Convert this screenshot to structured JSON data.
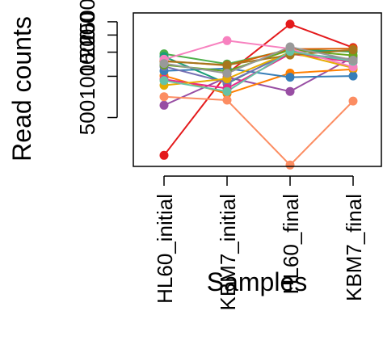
{
  "chart_data": {
    "type": "line",
    "title": "",
    "xlabel": "Samples",
    "ylabel": "Read counts",
    "yscale": "log",
    "ylim": [
      220,
      2900
    ],
    "categories": [
      "HL60_initial",
      "KBM7_initial",
      "HL60_final",
      "KBM7_final"
    ],
    "yticks": [
      500,
      1000,
      1500,
      2000,
      2500
    ],
    "ytick_labels": [
      "500",
      "1000",
      "1500",
      "2000",
      "2500"
    ],
    "grid": false,
    "legend": "none",
    "series": [
      {
        "color": "#e41a1c",
        "values": [
          265,
          1045,
          2400,
          1620
        ]
      },
      {
        "color": "#4daf4a",
        "values": [
          1460,
          1230,
          1570,
          1510
        ]
      },
      {
        "color": "#984ea3",
        "values": [
          615,
          985,
          775,
          1380
        ]
      },
      {
        "color": "#ff7f00",
        "values": [
          1010,
          745,
          1055,
          1125
        ]
      },
      {
        "color": "#377eb8",
        "values": [
          1095,
          1140,
          985,
          1005
        ]
      },
      {
        "color": "#1b9e77",
        "values": [
          1395,
          885,
          1510,
          1540
        ]
      },
      {
        "color": "#d95f02",
        "values": [
          1295,
          1200,
          1580,
          1590
        ]
      },
      {
        "color": "#7570b3",
        "values": [
          1180,
          900,
          1480,
          1330
        ]
      },
      {
        "color": "#e7298a",
        "values": [
          950,
          815,
          1460,
          1270
        ]
      },
      {
        "color": "#66a61e",
        "values": [
          1210,
          1090,
          1560,
          1420
        ]
      },
      {
        "color": "#e6ab02",
        "values": [
          860,
          960,
          1500,
          1150
        ]
      },
      {
        "color": "#a6761d",
        "values": [
          1285,
          1210,
          1430,
          1560
        ]
      },
      {
        "color": "#f781bf",
        "values": [
          1330,
          1820,
          1590,
          1170
        ]
      },
      {
        "color": "#fc8d62",
        "values": [
          710,
          670,
          225,
          660
        ]
      },
      {
        "color": "#66c2a5",
        "values": [
          930,
          775,
          1520,
          1290
        ]
      },
      {
        "color": "#999999",
        "values": [
          1240,
          1050,
          1640,
          1310
        ]
      }
    ]
  }
}
